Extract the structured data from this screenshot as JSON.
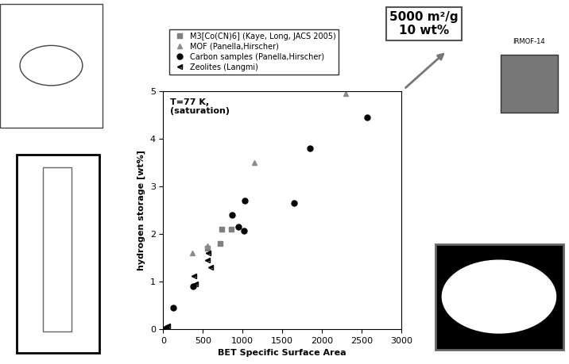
{
  "chart_data": {
    "type": "scatter",
    "x_label": "BET Specific Surface Area",
    "y_label": "hydrogen storage [wt%]",
    "annotations": [
      "T=77 K,\n(saturation)",
      "5000 m²/g\n10 wt%",
      "IRMOF-14"
    ],
    "xlim": [
      0,
      3000
    ],
    "ylim": [
      0,
      5
    ],
    "xticks": [
      0,
      500,
      1000,
      1500,
      2000,
      2500,
      3000
    ],
    "yticks": [
      0,
      1,
      2,
      3,
      4,
      5
    ],
    "legend": "upper left",
    "series": [
      {
        "name": "M3[Co(CN)6] (Kaye, Long, JACS 2005)",
        "color": "#7f7f7f",
        "marker": "square",
        "x": [
          740,
          860,
          720,
          560
        ],
        "values": [
          2.1,
          2.1,
          1.8,
          1.7
        ]
      },
      {
        "name": "MOF (Panella,Hirscher)",
        "color": "#8c8c8c",
        "marker": "triangle",
        "x": [
          370,
          560,
          1150,
          2300
        ],
        "values": [
          1.6,
          1.75,
          3.5,
          4.95
        ]
      },
      {
        "name": "Carbon samples (Panella,Hirscher)",
        "color": "#000000",
        "marker": "circle",
        "x": [
          130,
          380,
          870,
          950,
          1030,
          1020,
          1650,
          1850,
          2570
        ],
        "values": [
          0.45,
          0.9,
          2.4,
          2.15,
          2.7,
          2.07,
          2.65,
          3.8,
          4.45
        ]
      },
      {
        "name": "Zeolites (Langmi)",
        "color": "#000000",
        "marker": "flag",
        "x": [
          20,
          40,
          60,
          390,
          410,
          560,
          600,
          570
        ],
        "values": [
          0.02,
          0.05,
          0.07,
          1.12,
          0.95,
          1.45,
          1.3,
          1.6
        ]
      }
    ]
  }
}
